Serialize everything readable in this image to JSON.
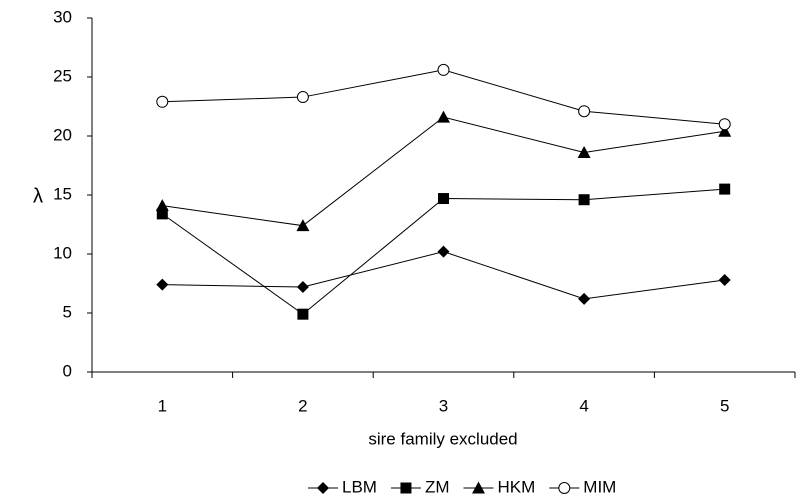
{
  "chart_data": {
    "type": "line",
    "categories": [
      "1",
      "2",
      "3",
      "4",
      "5"
    ],
    "series": [
      {
        "name": "LBM",
        "color": "#000000",
        "marker": "diamond",
        "values": [
          7.4,
          7.2,
          10.2,
          6.2,
          7.8
        ]
      },
      {
        "name": "ZM",
        "color": "#000000",
        "marker": "square",
        "values": [
          13.4,
          4.9,
          14.7,
          14.6,
          15.5
        ]
      },
      {
        "name": "HKM",
        "color": "#000000",
        "marker": "triangle",
        "values": [
          14.1,
          12.4,
          21.6,
          18.6,
          20.4
        ]
      },
      {
        "name": "MIM",
        "color": "#000000",
        "marker": "circle",
        "values": [
          22.9,
          23.3,
          25.6,
          22.1,
          21.0
        ]
      }
    ],
    "ylim": [
      0,
      30
    ],
    "yticks": [
      0,
      5,
      10,
      15,
      20,
      25,
      30
    ],
    "ylabel": "λ",
    "xlabel": "sire family excluded",
    "legend": "bottom",
    "grid": false
  }
}
